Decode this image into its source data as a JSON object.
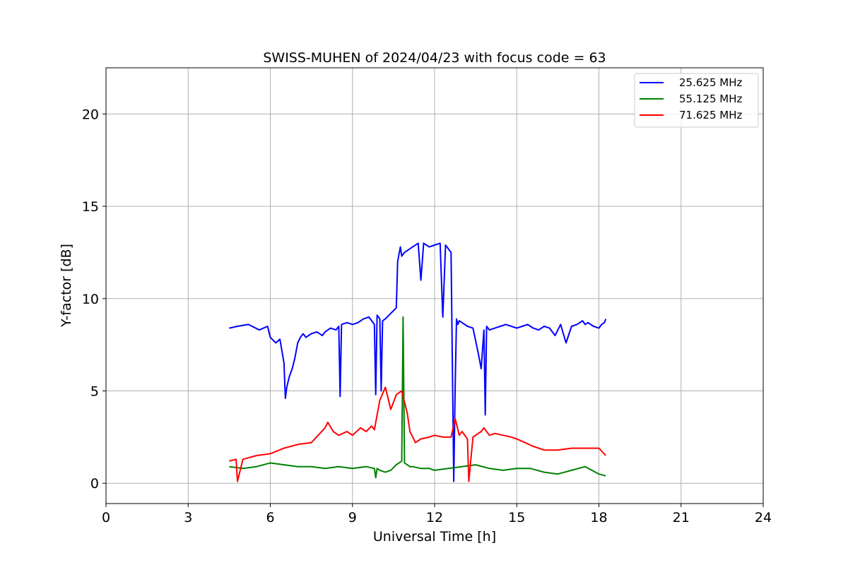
{
  "chart_data": {
    "type": "line",
    "title": "SWISS-MUHEN of 2024/04/23 with focus code = 63",
    "xlabel": "Universal Time [h]",
    "ylabel": "Y-factor [dB]",
    "xlim": [
      0,
      24
    ],
    "ylim": [
      -1.1,
      22.5
    ],
    "xticks": [
      0,
      3,
      6,
      9,
      12,
      15,
      18,
      21,
      24
    ],
    "yticks": [
      0,
      5,
      10,
      15,
      20
    ],
    "xtick_labels": [
      "0",
      "3",
      "6",
      "9",
      "12",
      "15",
      "18",
      "21",
      "24"
    ],
    "ytick_labels": [
      "0",
      "5",
      "10",
      "15",
      "20"
    ],
    "grid": true,
    "legend_position": "top-right",
    "series": [
      {
        "name": "25.625 MHz",
        "color": "#0000ff",
        "x": [
          4.5,
          4.8,
          5.2,
          5.6,
          5.9,
          6.0,
          6.2,
          6.35,
          6.5,
          6.55,
          6.6,
          6.7,
          6.8,
          6.9,
          6.95,
          7.0,
          7.1,
          7.2,
          7.3,
          7.5,
          7.7,
          7.9,
          8.0,
          8.2,
          8.4,
          8.5,
          8.55,
          8.6,
          8.8,
          9.0,
          9.2,
          9.4,
          9.6,
          9.8,
          9.85,
          9.9,
          10.0,
          10.05,
          10.1,
          10.2,
          10.4,
          10.6,
          10.65,
          10.7,
          10.75,
          10.8,
          10.9,
          11.0,
          11.2,
          11.4,
          11.5,
          11.6,
          11.8,
          12.0,
          12.2,
          12.3,
          12.4,
          12.6,
          12.7,
          12.75,
          12.8,
          12.85,
          12.9,
          13.0,
          13.2,
          13.4,
          13.6,
          13.7,
          13.8,
          13.85,
          13.9,
          14.0,
          14.2,
          14.4,
          14.6,
          14.8,
          15.0,
          15.2,
          15.4,
          15.5,
          15.6,
          15.8,
          16.0,
          16.2,
          16.4,
          16.6,
          16.8,
          17.0,
          17.2,
          17.3,
          17.4,
          17.5,
          17.6,
          17.8,
          18.0,
          18.1,
          18.2,
          18.25
        ],
        "values": [
          8.4,
          8.5,
          8.6,
          8.3,
          8.5,
          7.9,
          7.6,
          7.8,
          6.5,
          4.6,
          5.2,
          5.8,
          6.2,
          6.8,
          7.2,
          7.6,
          7.9,
          8.1,
          7.9,
          8.1,
          8.2,
          8.0,
          8.2,
          8.4,
          8.3,
          8.5,
          4.7,
          8.6,
          8.7,
          8.6,
          8.7,
          8.9,
          9.0,
          8.6,
          4.8,
          9.1,
          8.9,
          5.0,
          8.8,
          8.9,
          9.2,
          9.5,
          12.0,
          12.4,
          12.8,
          12.3,
          12.5,
          12.6,
          12.8,
          13.0,
          11.0,
          13.0,
          12.8,
          12.9,
          13.0,
          9.0,
          12.9,
          12.5,
          0.1,
          5.2,
          8.9,
          8.6,
          8.8,
          8.7,
          8.5,
          8.4,
          7.0,
          6.2,
          8.3,
          3.7,
          8.5,
          8.3,
          8.4,
          8.5,
          8.6,
          8.5,
          8.4,
          8.5,
          8.6,
          8.5,
          8.4,
          8.3,
          8.5,
          8.4,
          8.0,
          8.6,
          7.6,
          8.5,
          8.6,
          8.7,
          8.8,
          8.6,
          8.7,
          8.5,
          8.4,
          8.6,
          8.7,
          8.9
        ]
      },
      {
        "name": "55.125 MHz",
        "color": "#008000",
        "x": [
          4.5,
          5.0,
          5.5,
          6.0,
          6.5,
          7.0,
          7.5,
          8.0,
          8.5,
          9.0,
          9.5,
          9.8,
          9.85,
          9.9,
          10.0,
          10.2,
          10.4,
          10.6,
          10.8,
          10.85,
          10.9,
          11.0,
          11.1,
          11.2,
          11.5,
          11.8,
          12.0,
          12.5,
          13.0,
          13.5,
          14.0,
          14.5,
          15.0,
          15.5,
          16.0,
          16.5,
          17.0,
          17.5,
          18.0,
          18.25
        ],
        "values": [
          0.9,
          0.8,
          0.9,
          1.1,
          1.0,
          0.9,
          0.9,
          0.8,
          0.9,
          0.8,
          0.9,
          0.8,
          0.3,
          0.8,
          0.7,
          0.6,
          0.7,
          1.0,
          1.2,
          9.0,
          1.1,
          1.0,
          0.9,
          0.9,
          0.8,
          0.8,
          0.7,
          0.8,
          0.9,
          1.0,
          0.8,
          0.7,
          0.8,
          0.8,
          0.6,
          0.5,
          0.7,
          0.9,
          0.5,
          0.4
        ]
      },
      {
        "name": "71.625 MHz",
        "color": "#ff0000",
        "x": [
          4.5,
          4.75,
          4.8,
          5.0,
          5.5,
          6.0,
          6.5,
          7.0,
          7.5,
          8.0,
          8.1,
          8.3,
          8.5,
          8.8,
          9.0,
          9.3,
          9.5,
          9.7,
          9.8,
          10.0,
          10.2,
          10.4,
          10.6,
          10.8,
          11.0,
          11.1,
          11.3,
          11.5,
          11.8,
          12.0,
          12.3,
          12.6,
          12.75,
          12.9,
          13.0,
          13.2,
          13.25,
          13.4,
          13.7,
          13.8,
          14.0,
          14.2,
          14.5,
          14.8,
          15.0,
          15.3,
          15.6,
          16.0,
          16.5,
          17.0,
          17.5,
          18.0,
          18.25
        ],
        "values": [
          1.2,
          1.3,
          0.1,
          1.3,
          1.5,
          1.6,
          1.9,
          2.1,
          2.2,
          3.0,
          3.3,
          2.8,
          2.6,
          2.8,
          2.6,
          3.0,
          2.8,
          3.1,
          2.9,
          4.5,
          5.2,
          4.0,
          4.8,
          5.0,
          3.8,
          2.8,
          2.2,
          2.4,
          2.5,
          2.6,
          2.5,
          2.5,
          3.5,
          2.6,
          2.8,
          2.4,
          0.1,
          2.5,
          2.8,
          3.0,
          2.6,
          2.7,
          2.6,
          2.5,
          2.4,
          2.2,
          2.0,
          1.8,
          1.8,
          1.9,
          1.9,
          1.9,
          1.5
        ]
      }
    ]
  }
}
